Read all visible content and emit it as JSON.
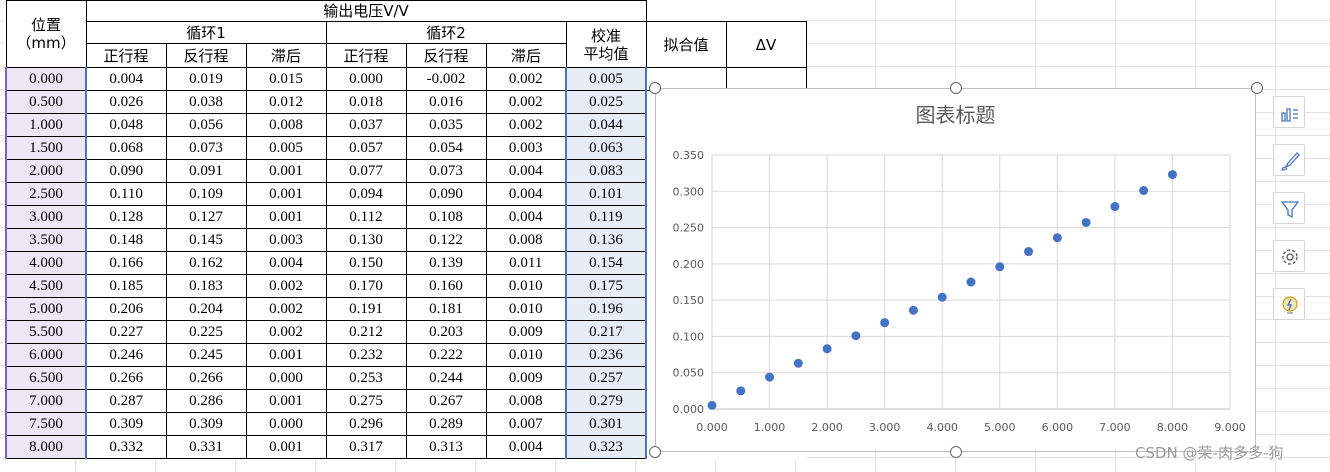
{
  "table": {
    "header": {
      "position": "位置",
      "position_unit": "（mm）",
      "output_voltage": "输出电压V/V",
      "cycle1": "循环1",
      "cycle2": "循环2",
      "calib_avg_line1": "校准",
      "calib_avg_line2": "平均值",
      "fit_value": "拟合值",
      "delta_v": "ΔV",
      "forward": "正行程",
      "reverse": "反行程",
      "hysteresis": "滞后"
    },
    "rows": [
      [
        "0.000",
        "0.004",
        "0.019",
        "0.015",
        "0.000",
        "-0.002",
        "0.002",
        "0.005"
      ],
      [
        "0.500",
        "0.026",
        "0.038",
        "0.012",
        "0.018",
        "0.016",
        "0.002",
        "0.025"
      ],
      [
        "1.000",
        "0.048",
        "0.056",
        "0.008",
        "0.037",
        "0.035",
        "0.002",
        "0.044"
      ],
      [
        "1.500",
        "0.068",
        "0.073",
        "0.005",
        "0.057",
        "0.054",
        "0.003",
        "0.063"
      ],
      [
        "2.000",
        "0.090",
        "0.091",
        "0.001",
        "0.077",
        "0.073",
        "0.004",
        "0.083"
      ],
      [
        "2.500",
        "0.110",
        "0.109",
        "0.001",
        "0.094",
        "0.090",
        "0.004",
        "0.101"
      ],
      [
        "3.000",
        "0.128",
        "0.127",
        "0.001",
        "0.112",
        "0.108",
        "0.004",
        "0.119"
      ],
      [
        "3.500",
        "0.148",
        "0.145",
        "0.003",
        "0.130",
        "0.122",
        "0.008",
        "0.136"
      ],
      [
        "4.000",
        "0.166",
        "0.162",
        "0.004",
        "0.150",
        "0.139",
        "0.011",
        "0.154"
      ],
      [
        "4.500",
        "0.185",
        "0.183",
        "0.002",
        "0.170",
        "0.160",
        "0.010",
        "0.175"
      ],
      [
        "5.000",
        "0.206",
        "0.204",
        "0.002",
        "0.191",
        "0.181",
        "0.010",
        "0.196"
      ],
      [
        "5.500",
        "0.227",
        "0.225",
        "0.002",
        "0.212",
        "0.203",
        "0.009",
        "0.217"
      ],
      [
        "6.000",
        "0.246",
        "0.245",
        "0.001",
        "0.232",
        "0.222",
        "0.010",
        "0.236"
      ],
      [
        "6.500",
        "0.266",
        "0.266",
        "0.000",
        "0.253",
        "0.244",
        "0.009",
        "0.257"
      ],
      [
        "7.000",
        "0.287",
        "0.286",
        "0.001",
        "0.275",
        "0.267",
        "0.008",
        "0.279"
      ],
      [
        "7.500",
        "0.309",
        "0.309",
        "0.000",
        "0.296",
        "0.289",
        "0.007",
        "0.301"
      ],
      [
        "8.000",
        "0.332",
        "0.331",
        "0.001",
        "0.317",
        "0.313",
        "0.004",
        "0.323"
      ]
    ]
  },
  "chart_data": {
    "type": "scatter",
    "title": "图表标题",
    "x": [
      0,
      0.5,
      1,
      1.5,
      2,
      2.5,
      3,
      3.5,
      4,
      4.5,
      5,
      5.5,
      6,
      6.5,
      7,
      7.5,
      8
    ],
    "y": [
      0.005,
      0.025,
      0.044,
      0.063,
      0.083,
      0.101,
      0.119,
      0.136,
      0.154,
      0.175,
      0.196,
      0.217,
      0.236,
      0.257,
      0.279,
      0.301,
      0.323
    ],
    "xlim": [
      0,
      9
    ],
    "ylim": [
      0,
      0.35
    ],
    "xticks": [
      "0.000",
      "1.000",
      "2.000",
      "3.000",
      "4.000",
      "5.000",
      "6.000",
      "7.000",
      "8.000",
      "9.000"
    ],
    "yticks": [
      "0.000",
      "0.050",
      "0.100",
      "0.150",
      "0.200",
      "0.250",
      "0.300",
      "0.350"
    ],
    "grid": true,
    "marker_color": "#4472c4"
  },
  "side_tools": [
    "chart-elements-icon",
    "chart-styles-icon",
    "chart-filter-icon",
    "chart-settings-icon",
    "ideas-icon"
  ],
  "watermark": "CSDN @荣-肉多多-狗"
}
